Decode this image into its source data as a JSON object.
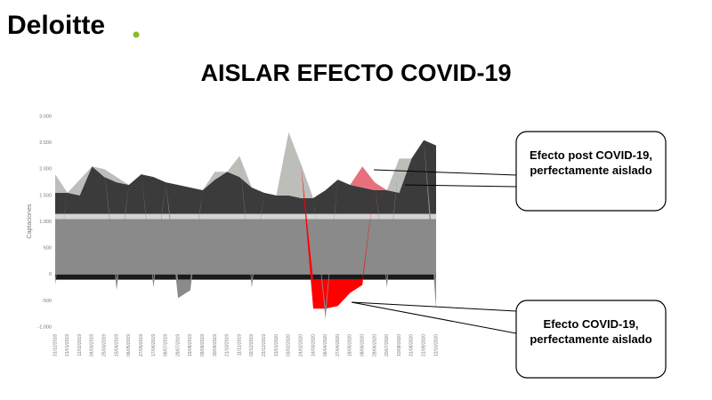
{
  "brand": "Deloitte",
  "chart_data": {
    "type": "stacked-area",
    "title": "AISLAR EFECTO COVID-19",
    "y_label": "Captaciones",
    "categories": [
      "31/12/2018",
      "21/01/2019",
      "11/02/2019",
      "04/03/2019",
      "25/03/2019",
      "15/04/2019",
      "06/05/2019",
      "27/05/2019",
      "17/06/2019",
      "08/07/2019",
      "29/07/2019",
      "19/08/2019",
      "09/09/2019",
      "30/09/2019",
      "21/10/2019",
      "11/11/2019",
      "02/12/2019",
      "23/12/2019",
      "13/01/2020",
      "03/02/2020",
      "24/02/2020",
      "16/03/2020",
      "06/04/2020",
      "27/04/2020",
      "18/05/2020",
      "08/06/2020",
      "29/06/2020",
      "20/07/2020",
      "10/08/2020",
      "31/08/2020",
      "21/09/2020",
      "12/10/2020"
    ],
    "series": [
      {
        "color": "#8a8a8a",
        "values": [
          1050,
          1050,
          1050,
          1050,
          1050,
          1050,
          1050,
          1050,
          1050,
          1050,
          1050,
          1050,
          1050,
          1050,
          1050,
          1050,
          1050,
          1050,
          1050,
          1050,
          1050,
          1050,
          1050,
          1050,
          1050,
          1050,
          1050,
          1050,
          1050,
          1050,
          1050,
          1050
        ]
      },
      {
        "color": "#d4d4d4",
        "values": [
          100,
          100,
          100,
          100,
          100,
          100,
          100,
          100,
          100,
          100,
          100,
          100,
          100,
          100,
          100,
          100,
          100,
          100,
          100,
          100,
          100,
          100,
          100,
          100,
          100,
          100,
          100,
          100,
          100,
          100,
          100,
          100
        ]
      },
      {
        "color": "#3b3b3b",
        "values": [
          400,
          400,
          350,
          900,
          700,
          600,
          550,
          750,
          700,
          600,
          550,
          500,
          450,
          650,
          800,
          700,
          500,
          400,
          350,
          350,
          300,
          300,
          450,
          650,
          550,
          500,
          450,
          450,
          400,
          1050,
          1400,
          1300
        ]
      },
      {
        "color": "#bdbdb9",
        "values": [
          350,
          0,
          300,
          0,
          150,
          100,
          0,
          0,
          0,
          0,
          0,
          0,
          0,
          150,
          0,
          400,
          0,
          0,
          0,
          1200,
          650,
          0,
          0,
          0,
          0,
          0,
          0,
          0,
          650,
          0,
          0,
          0
        ]
      },
      {
        "color": "#e8707c",
        "values": [
          0,
          0,
          0,
          0,
          0,
          0,
          0,
          0,
          0,
          0,
          0,
          0,
          0,
          0,
          0,
          0,
          0,
          0,
          0,
          0,
          0,
          0,
          0,
          0,
          0,
          400,
          150,
          0,
          0,
          0,
          0,
          0
        ]
      },
      {
        "color": "#1a1a1a",
        "values": [
          -100,
          -100,
          -100,
          -100,
          -100,
          -100,
          -100,
          -100,
          -100,
          -100,
          -100,
          -100,
          -100,
          -100,
          -100,
          -100,
          -100,
          -100,
          -100,
          -100,
          -100,
          -100,
          -100,
          -100,
          -100,
          -100,
          -100,
          -100,
          -100,
          -100,
          -100,
          -100
        ]
      },
      {
        "color": "#ff0000",
        "values": [
          0,
          0,
          0,
          0,
          0,
          0,
          0,
          0,
          0,
          0,
          0,
          0,
          0,
          0,
          0,
          0,
          0,
          0,
          0,
          0,
          0,
          -550,
          -550,
          -500,
          -250,
          -100,
          0,
          0,
          0,
          0,
          0,
          0
        ]
      },
      {
        "color": "#8a8a8a",
        "values": [
          -100,
          0,
          0,
          0,
          0,
          -200,
          0,
          0,
          -150,
          0,
          -350,
          -200,
          0,
          0,
          0,
          0,
          -150,
          0,
          0,
          0,
          0,
          0,
          -200,
          0,
          0,
          0,
          0,
          -150,
          0,
          0,
          0,
          -550
        ]
      }
    ],
    "ylim": [
      -1000,
      3000
    ],
    "yticks": [
      {
        "value": -1000,
        "label": "-1.000"
      },
      -500,
      0,
      500,
      {
        "value": 1000,
        "label": "1.000"
      },
      {
        "value": 1500,
        "label": "1.500"
      },
      {
        "value": 2000,
        "label": "2.000"
      },
      {
        "value": 2500,
        "label": "2.500"
      },
      {
        "value": 3000,
        "label": "3.000"
      }
    ],
    "annotations": [
      "Efecto post COVID-19, perfectamente aislado",
      "Efecto COVID-19, perfectamente aislado"
    ]
  }
}
